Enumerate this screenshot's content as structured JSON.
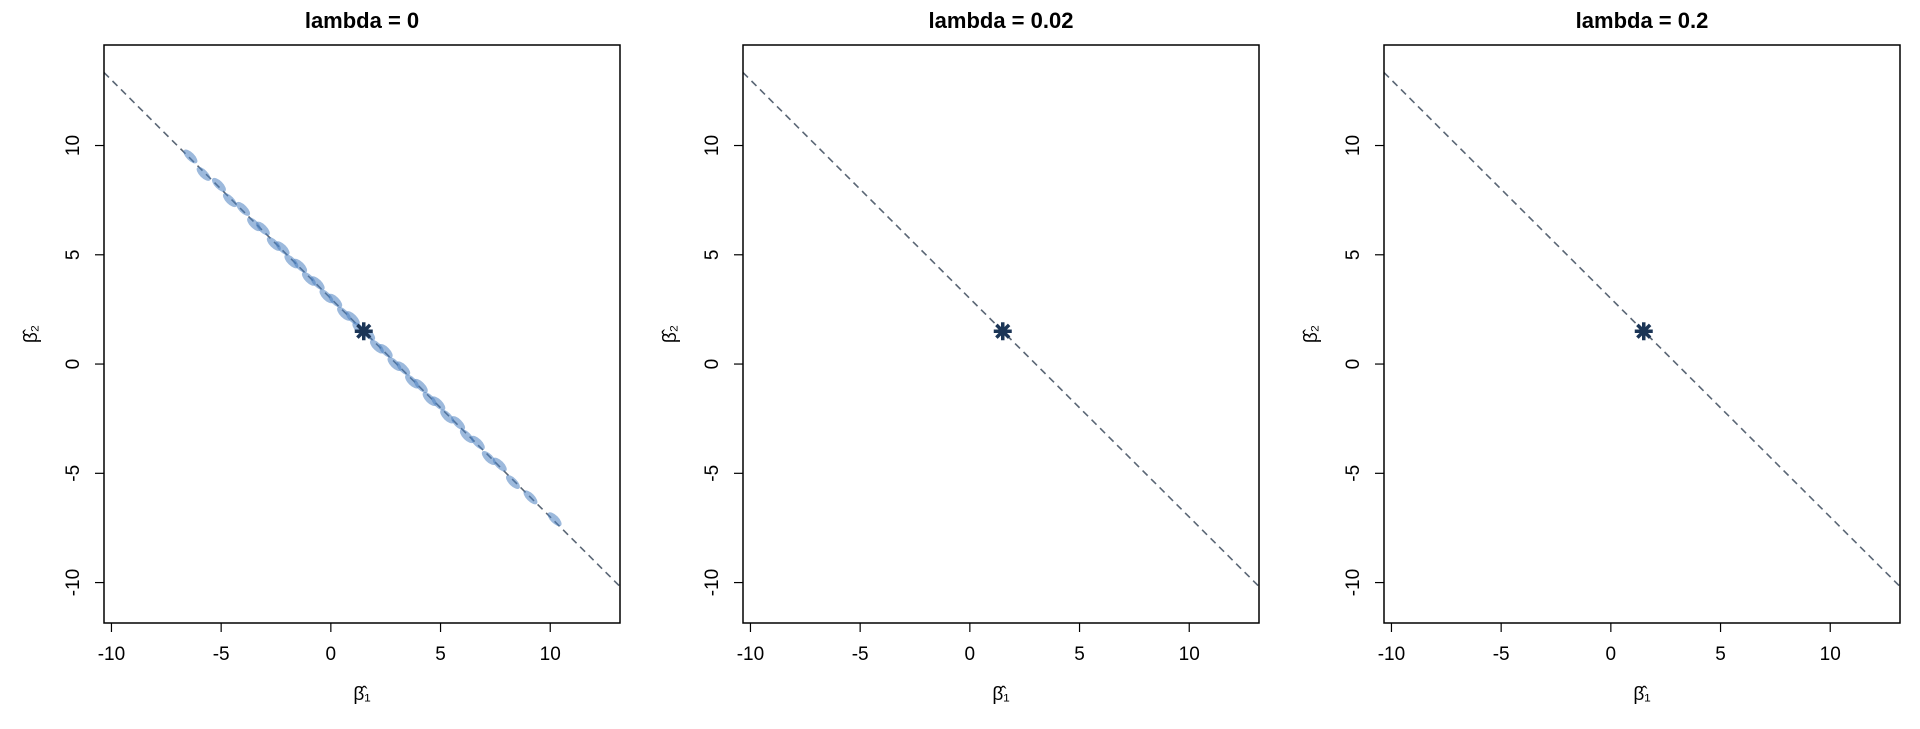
{
  "chart_data": [
    {
      "type": "scatter",
      "title": "lambda = 0",
      "xlabel": "β̂₁",
      "ylabel": "β̂₂",
      "xlim": [
        -10.34,
        13.18
      ],
      "ylim": [
        -11.85,
        14.6
      ],
      "xticks": [
        -10,
        -5,
        0,
        5,
        10
      ],
      "yticks": [
        -10,
        -5,
        0,
        5,
        10
      ],
      "points": {
        "color": "#4a7fbf",
        "x": [
          -6.4,
          -5.8,
          -5.1,
          -4.6,
          -4.0,
          -3.5,
          -3.1,
          -2.6,
          -2.2,
          -1.8,
          -1.4,
          -1.0,
          -0.6,
          -0.2,
          0.2,
          0.6,
          1.0,
          1.3,
          1.7,
          2.1,
          2.5,
          2.9,
          3.3,
          3.7,
          4.1,
          4.5,
          4.9,
          5.3,
          5.8,
          6.2,
          6.7,
          7.2,
          7.7,
          8.3,
          9.1,
          10.2
        ],
        "y": [
          9.5,
          8.7,
          8.2,
          7.5,
          7.1,
          6.4,
          6.2,
          5.5,
          5.3,
          4.7,
          4.5,
          3.9,
          3.7,
          3.1,
          2.9,
          2.3,
          2.1,
          1.6,
          1.4,
          0.8,
          0.6,
          0.0,
          -0.2,
          -0.8,
          -1.0,
          -1.6,
          -1.8,
          -2.4,
          -2.7,
          -3.3,
          -3.6,
          -4.3,
          -4.6,
          -5.4,
          -6.1,
          -7.1
        ]
      },
      "true_point": {
        "x": 1.5,
        "y": 1.5,
        "color": "#1b3556"
      },
      "reference_line": {
        "intercept": 3,
        "slope": -1,
        "color": "#5a6675"
      }
    },
    {
      "type": "scatter",
      "title": "lambda = 0.02",
      "xlabel": "β̂₁",
      "ylabel": "β̂₂",
      "xlim": [
        -10.34,
        13.18
      ],
      "ylim": [
        -11.85,
        14.6
      ],
      "xticks": [
        -10,
        -5,
        0,
        5,
        10
      ],
      "yticks": [
        -10,
        -5,
        0,
        5,
        10
      ],
      "true_point": {
        "x": 1.5,
        "y": 1.5,
        "color": "#1b3556"
      },
      "reference_line": {
        "intercept": 3,
        "slope": -1,
        "color": "#5a6675"
      }
    },
    {
      "type": "scatter",
      "title": "lambda = 0.2",
      "xlabel": "β̂₁",
      "ylabel": "β̂₂",
      "xlim": [
        -10.34,
        13.18
      ],
      "ylim": [
        -11.85,
        14.6
      ],
      "xticks": [
        -10,
        -5,
        0,
        5,
        10
      ],
      "yticks": [
        -10,
        -5,
        0,
        5,
        10
      ],
      "true_point": {
        "x": 1.5,
        "y": 1.5,
        "color": "#1b3556"
      },
      "reference_line": {
        "intercept": 3,
        "slope": -1,
        "color": "#5a6675"
      }
    }
  ]
}
